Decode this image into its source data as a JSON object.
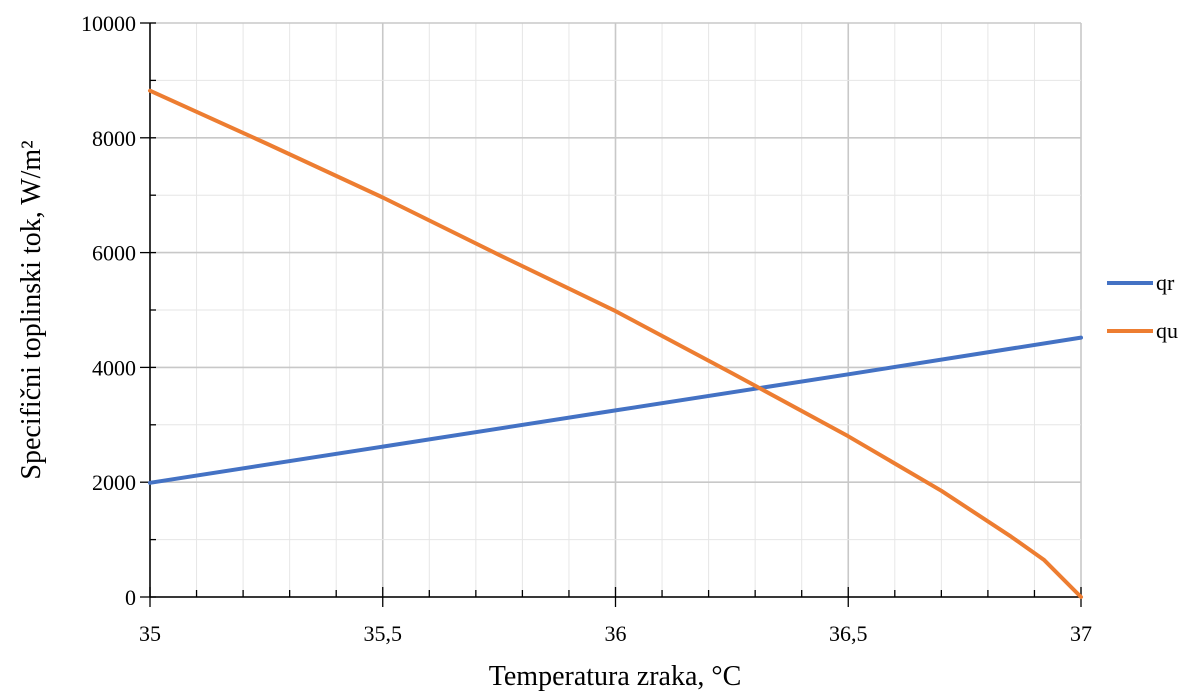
{
  "chart_data": {
    "type": "line",
    "xlabel": "Temperatura zraka, °C",
    "ylabel": "Specifični toplinski tok, W/m²",
    "xlim": [
      35,
      37
    ],
    "ylim": [
      0,
      10000
    ],
    "x_ticks": [
      35,
      35.5,
      36,
      36.5,
      37
    ],
    "x_tick_labels": [
      "35",
      "35,5",
      "36",
      "36,5",
      "37"
    ],
    "y_ticks": [
      0,
      2000,
      4000,
      6000,
      8000,
      10000
    ],
    "y_tick_labels": [
      "0",
      "2000",
      "4000",
      "6000",
      "8000",
      "10000"
    ],
    "grid": true,
    "legend_position": "right",
    "series": [
      {
        "name": "qr",
        "color": "#4472C4",
        "points": [
          [
            35,
            1990
          ],
          [
            35.5,
            2620
          ],
          [
            36,
            3250
          ],
          [
            36.5,
            3880
          ],
          [
            37,
            4520
          ]
        ]
      },
      {
        "name": "qu",
        "color": "#ED7D31",
        "points": [
          [
            35,
            8820
          ],
          [
            35.25,
            7900
          ],
          [
            35.5,
            6960
          ],
          [
            35.75,
            5960
          ],
          [
            36,
            4980
          ],
          [
            36.25,
            3900
          ],
          [
            36.5,
            2800
          ],
          [
            36.7,
            1850
          ],
          [
            36.85,
            1050
          ],
          [
            36.92,
            650
          ],
          [
            37,
            0
          ]
        ]
      }
    ]
  }
}
